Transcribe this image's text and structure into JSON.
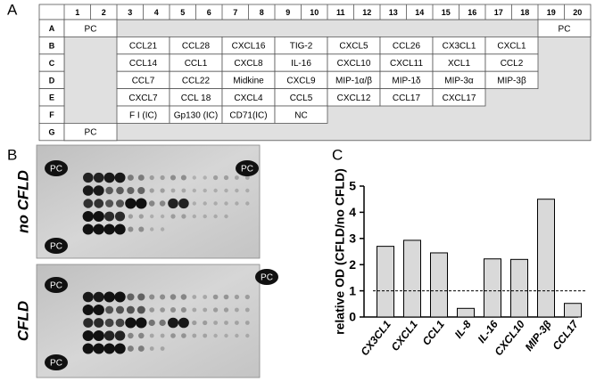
{
  "panel_labels": [
    "A",
    "B",
    "C"
  ],
  "table": {
    "columns": [
      1,
      2,
      3,
      4,
      5,
      6,
      7,
      8,
      9,
      10,
      11,
      12,
      13,
      14,
      15,
      16,
      17,
      18,
      19,
      20
    ],
    "rows": [
      {
        "label": "A",
        "cells": [
          "PC",
          "PC"
        ]
      },
      {
        "label": "B",
        "cells": [
          "CCL21",
          "CCL28",
          "CXCL16",
          "TIG-2",
          "CXCL5",
          "CCL26",
          "CX3CL1",
          "CXCL1"
        ]
      },
      {
        "label": "C",
        "cells": [
          "CCL14",
          "CCL1",
          "CXCL8",
          "IL-16",
          "CXCL10",
          "CXCL11",
          "XCL1",
          "CCL2"
        ]
      },
      {
        "label": "D",
        "cells": [
          "CCL7",
          "CCL22",
          "Midkine",
          "CXCL9",
          "MIP-1α/β",
          "MIP-1δ",
          "MIP-3α",
          "MIP-3β"
        ]
      },
      {
        "label": "E",
        "cells": [
          "CXCL7",
          "CCL 18",
          "CXCL4",
          "CCL5",
          "CXCL12",
          "CCL17",
          "CXCL17"
        ]
      },
      {
        "label": "F",
        "cells": [
          "F I (IC)",
          "Gp130 (IC)",
          "CD71(IC)",
          "NC"
        ]
      },
      {
        "label": "G",
        "cells": [
          "PC"
        ]
      }
    ]
  },
  "blots": [
    {
      "label": "no CFLD",
      "spots": [
        "PC",
        "PC",
        "PC"
      ]
    },
    {
      "label": "CFLD",
      "spots": [
        "PC",
        "PC",
        "PC"
      ]
    }
  ],
  "chart_data": {
    "type": "bar",
    "y_label": "relative OD (CFLD/no CFLD)",
    "categories": [
      "CX3CL1",
      "CXCL1",
      "CCL1",
      "IL-8",
      "IL-16",
      "CXCL10",
      "MIP-3β",
      "CCL17"
    ],
    "values": [
      2.7,
      2.93,
      2.45,
      0.33,
      2.22,
      2.2,
      4.5,
      0.52
    ],
    "color": "#d9d9d9",
    "ylim": [
      0,
      5
    ],
    "yticks": [
      0,
      1,
      2,
      3,
      4,
      5
    ],
    "reference_line": 1
  }
}
